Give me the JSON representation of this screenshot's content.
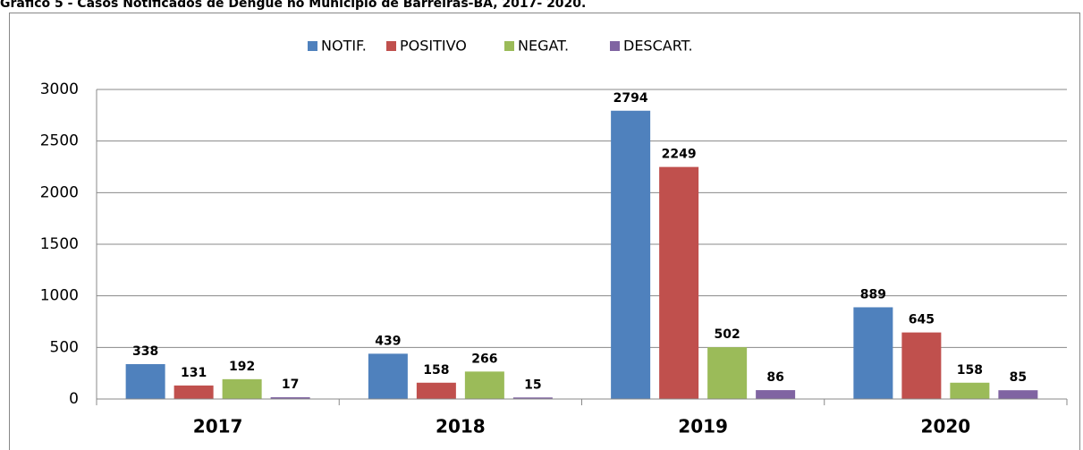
{
  "chart_data": {
    "type": "bar",
    "title": "Gráfico 5 - Casos Notificados de Dengue no Município de Barreiras-BA, 2017- 2020.",
    "categories": [
      "2017",
      "2018",
      "2019",
      "2020"
    ],
    "series": [
      {
        "name": "NOTIF.",
        "color": "#4f81bd",
        "values": [
          338,
          439,
          2794,
          889
        ]
      },
      {
        "name": "POSITIVO",
        "color": "#c0504d",
        "values": [
          131,
          158,
          2249,
          645
        ]
      },
      {
        "name": "NEGAT.",
        "color": "#9bbb59",
        "values": [
          192,
          266,
          502,
          158
        ]
      },
      {
        "name": "DESCART.",
        "color": "#8064a2",
        "values": [
          17,
          15,
          86,
          85
        ]
      }
    ],
    "ylim": [
      0,
      3000
    ],
    "yticks": [
      0,
      500,
      1000,
      1500,
      2000,
      2500,
      3000
    ],
    "grid": true,
    "legend": "top"
  }
}
